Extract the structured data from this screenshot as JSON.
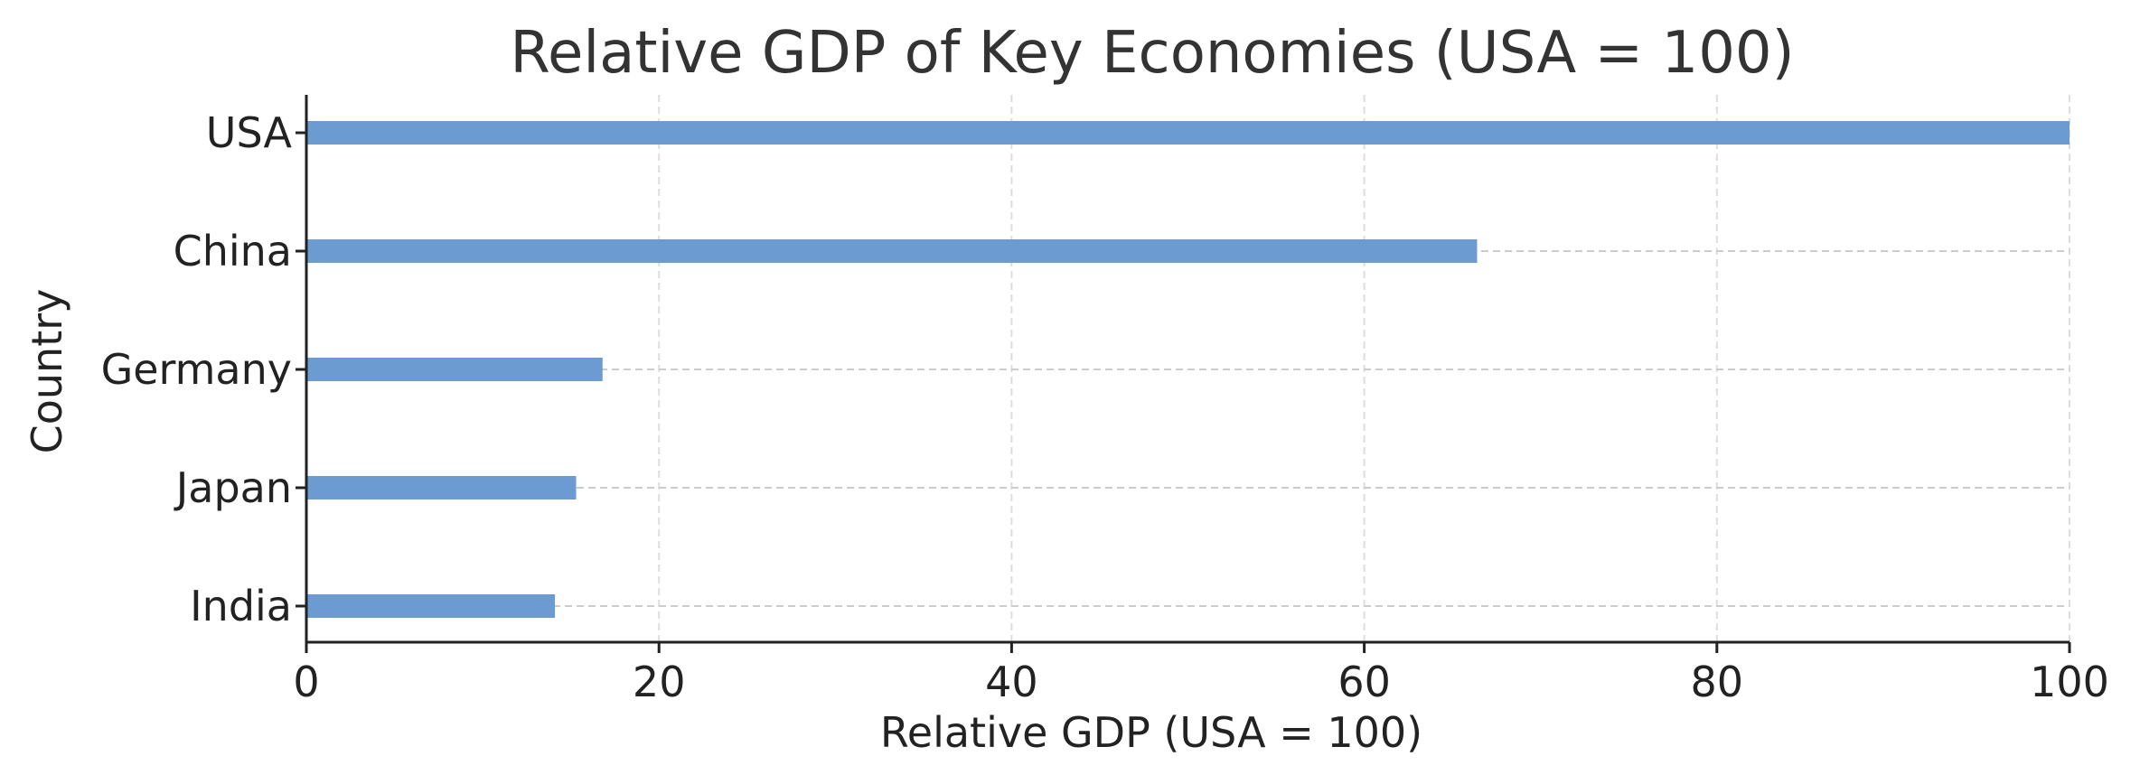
{
  "chart_data": {
    "type": "bar",
    "orientation": "horizontal",
    "title": "Relative GDP of Key Economies (USA = 100)",
    "xlabel": "Relative GDP (USA = 100)",
    "ylabel": "Country",
    "categories": [
      "USA",
      "China",
      "Germany",
      "Japan",
      "India"
    ],
    "values": [
      100,
      66.4,
      16.8,
      15.3,
      14.1
    ],
    "xlim": [
      0,
      100
    ],
    "xticks": [
      0,
      20,
      40,
      60,
      80,
      100
    ],
    "grid": true,
    "bar_color": "#6b9bd1"
  }
}
